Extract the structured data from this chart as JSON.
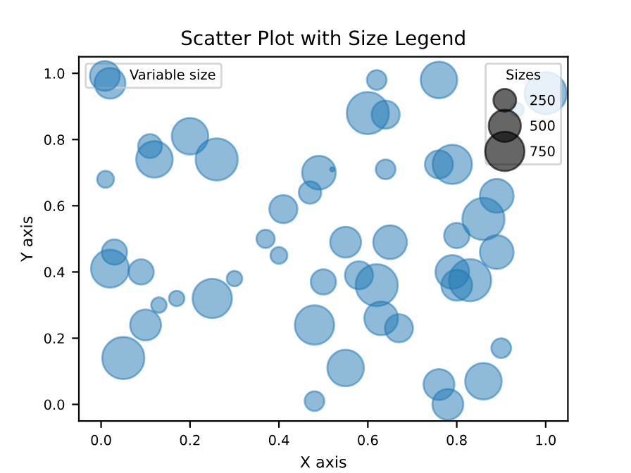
{
  "chart_data": {
    "type": "bubble",
    "title": "Scatter Plot with Size Legend",
    "xlabel": "X axis",
    "ylabel": "Y axis",
    "xlim": [
      -0.05,
      1.05
    ],
    "ylim": [
      -0.05,
      1.05
    ],
    "xticks": [
      {
        "value": 0,
        "label": "0.0"
      },
      0.2,
      0.4,
      0.6,
      0.8,
      {
        "value": 1,
        "label": "1.0"
      }
    ],
    "yticks": [
      {
        "value": 0,
        "label": "0.0"
      },
      0.2,
      0.4,
      0.6,
      0.8,
      {
        "value": 1,
        "label": "1.0"
      }
    ],
    "legend": "top left",
    "legend_title": "Sizes",
    "size_legend": [
      250,
      500,
      750
    ],
    "grid": false,
    "series": [
      {
        "name": "Variable size",
        "color": "#1f77b4",
        "x": [
          0.02,
          0.01,
          0.11,
          0.12,
          0.2,
          0.26,
          0.49,
          0.52,
          0.47,
          0.41,
          0.37,
          0.4,
          0.03,
          0.02,
          0.09,
          0.13,
          0.17,
          0.25,
          0.3,
          0.1,
          0.05,
          0.48,
          0.48,
          0.5,
          0.55,
          0.55,
          0.65,
          0.58,
          0.62,
          0.63,
          0.67,
          0.89,
          0.79,
          0.8,
          0.83,
          0.8,
          0.9,
          0.86,
          0.76,
          0.78,
          0.62,
          0.76,
          0.6,
          0.64,
          1.0,
          0.935,
          0.64,
          0.76,
          0.79,
          0.89,
          0.86
        ],
        "values": [
          0.97,
          0.68,
          0.78,
          0.74,
          0.81,
          0.74,
          0.7,
          0.71,
          0.64,
          0.59,
          0.5,
          0.45,
          0.46,
          0.41,
          0.4,
          0.3,
          0.32,
          0.32,
          0.38,
          0.24,
          0.14,
          0.01,
          0.24,
          0.37,
          0.11,
          0.49,
          0.49,
          0.39,
          0.36,
          0.26,
          0.23,
          0.46,
          0.4,
          0.36,
          0.375,
          0.51,
          0.17,
          0.07,
          0.06,
          0.0,
          0.98,
          0.98,
          0.88,
          0.875,
          0.94,
          0.89,
          0.71,
          0.725,
          0.725,
          0.63,
          0.56
        ],
        "sizes": [
          463,
          138,
          276,
          647,
          647,
          861,
          551,
          9,
          245,
          383,
          162,
          138,
          310,
          697,
          310,
          116,
          116,
          750,
          116,
          463,
          861,
          188,
          750,
          310,
          647,
          463,
          551,
          383,
          861,
          551,
          383,
          551,
          551,
          463,
          861,
          310,
          188,
          647,
          463,
          463,
          188,
          647,
          861,
          383,
          861,
          96,
          188,
          383,
          750,
          551,
          861
        ]
      }
    ]
  }
}
